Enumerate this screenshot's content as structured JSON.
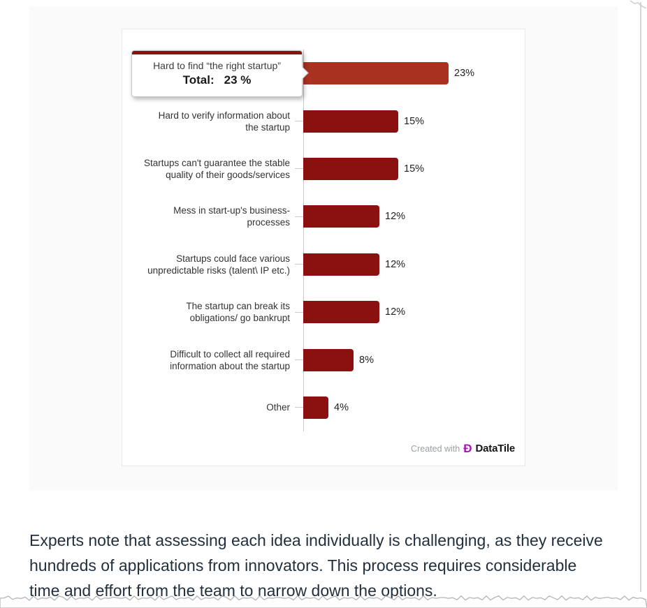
{
  "page": {
    "article_text": "Experts note that assessing each idea individually is challenging, as they receive hundreds of applications from innovators. This process requires considerable time and effort from the team to narrow down the options."
  },
  "chart_data": {
    "type": "bar",
    "orientation": "horizontal",
    "unit": "%",
    "categories": [
      [
        "Hard to find “the right startup”"
      ],
      [
        "Hard to verify information about",
        "the startup"
      ],
      [
        "Startups can't guarantee the stable",
        "quality of their goods/services"
      ],
      [
        "Mess in start-up's business-",
        "processes"
      ],
      [
        "Startups could face various",
        "unpredictable risks (talent\\ IP etc.)"
      ],
      [
        "The startup can break its",
        "obligations/ go bankrupt"
      ],
      [
        "Difficult to collect all required",
        "information about the startup"
      ],
      [
        "Other"
      ]
    ],
    "values": [
      23,
      15,
      15,
      12,
      12,
      12,
      8,
      4
    ],
    "xlim": [
      0,
      25
    ],
    "grid": false,
    "highlighted_index": 0,
    "colors": {
      "bar": "#8B1010",
      "bar_highlight": "#A93120",
      "logo": "#AA16B5",
      "band_background": "#fafafa"
    },
    "tooltip": {
      "category": "Hard to find “the right startup”",
      "label": "Total:",
      "value": "23 %"
    },
    "footer": {
      "prefix": "Created with",
      "logo_glyph": "Ð",
      "brand": "DataTile"
    }
  }
}
